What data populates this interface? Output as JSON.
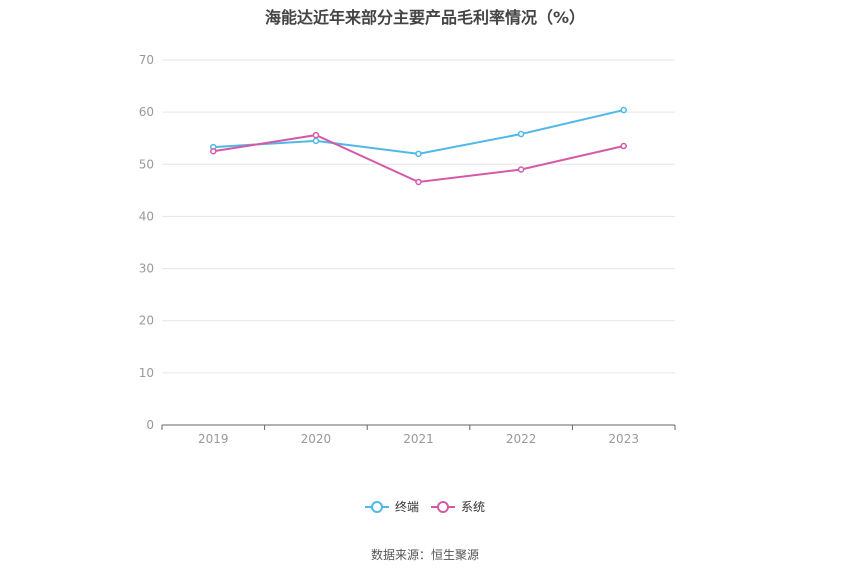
{
  "title": "海能达近年来部分主要产品毛利率情况（%）",
  "source": "数据来源：恒生聚源",
  "colors": {
    "grid": "#e3e6ee",
    "axis": "#666666",
    "tick_text": "#999999"
  },
  "chart_data": {
    "type": "line",
    "title": "海能达近年来部分主要产品毛利率情况（%）",
    "xlabel": "",
    "ylabel": "",
    "x": [
      "2019",
      "2020",
      "2021",
      "2022",
      "2023"
    ],
    "ylim": [
      0,
      70
    ],
    "yticks": [
      0,
      10,
      20,
      30,
      40,
      50,
      60,
      70
    ],
    "grid": true,
    "legend_position": "bottom-center",
    "series": [
      {
        "name": "终端",
        "color": "#4fb8e8",
        "values": [
          53.3,
          54.5,
          52.0,
          55.8,
          60.4
        ]
      },
      {
        "name": "系统",
        "color": "#d45aa8",
        "values": [
          52.5,
          55.6,
          46.6,
          49.0,
          53.5
        ]
      }
    ]
  }
}
